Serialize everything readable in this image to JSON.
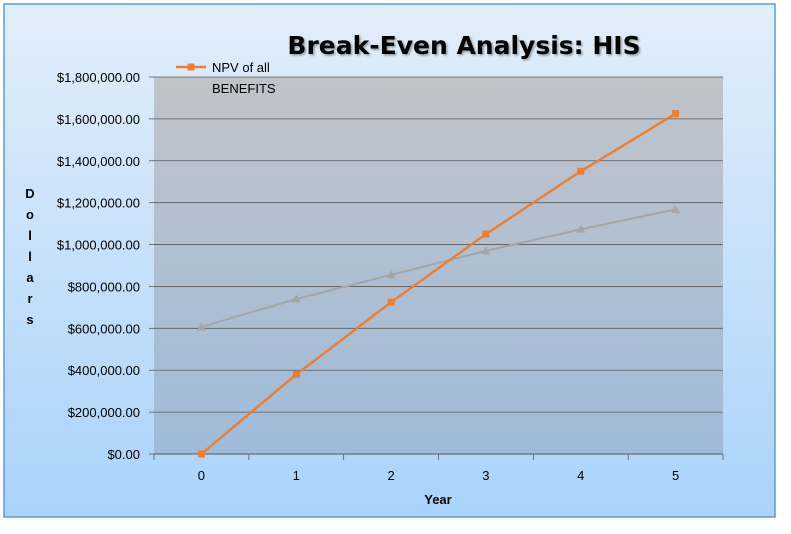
{
  "chart_data": {
    "type": "line",
    "title": "Break-Even Analysis: HIS",
    "xlabel": "Year",
    "ylabel": "Dollars",
    "x": [
      "0",
      "1",
      "2",
      "3",
      "4",
      "5"
    ],
    "yticks": [
      "$0.00",
      "$200,000.00",
      "$400,000.00",
      "$600,000.00",
      "$800,000.00",
      "$1,000,000.00",
      "$1,200,000.00",
      "$1,400,000.00",
      "$1,600,000.00",
      "$1,800,000.00"
    ],
    "ylim": [
      0,
      1800000
    ],
    "grid": true,
    "legend": {
      "placement": "top-left",
      "entries": [
        "NPV of all BENEFITS"
      ]
    },
    "series": [
      {
        "name": "NPV of all BENEFITS",
        "color": "#ed7d31",
        "marker": "square",
        "values": [
          0,
          380000,
          725000,
          1050000,
          1350000,
          1625000
        ]
      },
      {
        "name": "",
        "color": "#a5a5a5",
        "marker": "triangle",
        "values": [
          607000,
          740000,
          855000,
          970000,
          1073000,
          1168000
        ]
      }
    ],
    "colors": {
      "frame_border": "#5b9bd5",
      "plot_background": "#b4bcc8",
      "gridline": "#595959"
    }
  }
}
